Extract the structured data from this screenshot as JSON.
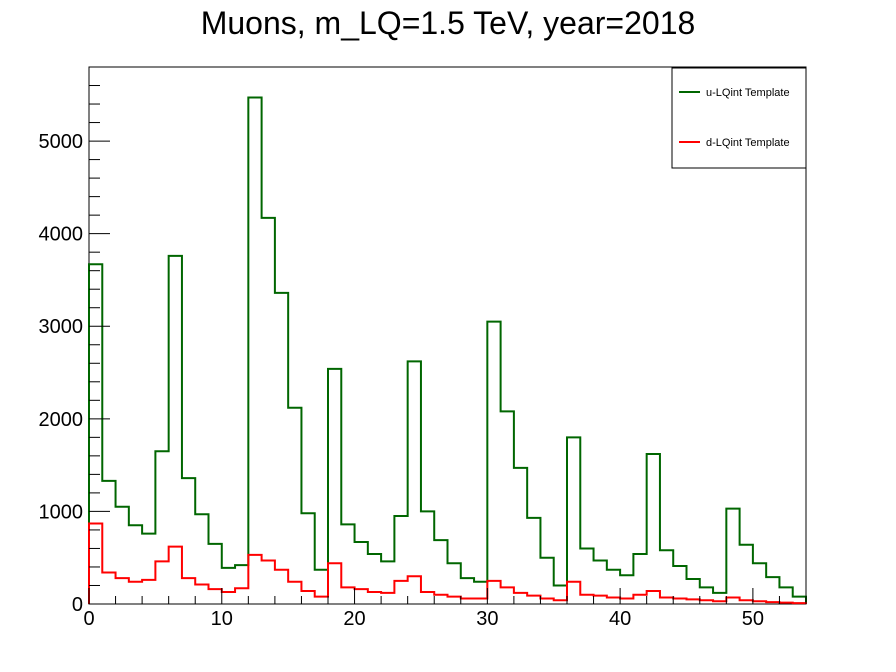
{
  "chart_data": {
    "type": "histogram",
    "title": "Muons, m_LQ=1.5 TeV, year=2018",
    "xlabel": "",
    "ylabel": "",
    "xlim": [
      0,
      54
    ],
    "ylim": [
      0,
      5800
    ],
    "bin_width": 1,
    "x_ticks": [
      0,
      10,
      20,
      30,
      40,
      50
    ],
    "x_tick_labels": [
      "0",
      "10",
      "20",
      "30",
      "40",
      "50"
    ],
    "y_ticks": [
      0,
      1000,
      2000,
      3000,
      4000,
      5000
    ],
    "y_tick_labels": [
      "0",
      "1000",
      "2000",
      "3000",
      "4000",
      "5000"
    ],
    "grid": false,
    "legend": {
      "position": "top-right",
      "entries": [
        "u-LQint Template",
        "d-LQint Template"
      ]
    },
    "series": [
      {
        "name": "u-LQint Template",
        "color": "#006600",
        "values": [
          3670,
          1330,
          1050,
          850,
          760,
          1650,
          3760,
          1360,
          970,
          650,
          390,
          420,
          5470,
          4170,
          3360,
          2120,
          980,
          370,
          2540,
          860,
          670,
          540,
          460,
          950,
          2620,
          1000,
          690,
          440,
          280,
          240,
          3050,
          2080,
          1470,
          930,
          500,
          200,
          1800,
          600,
          470,
          370,
          310,
          540,
          1620,
          580,
          410,
          270,
          180,
          120,
          1030,
          640,
          440,
          290,
          180,
          80
        ]
      },
      {
        "name": "d-LQint Template",
        "color": "#ff0000",
        "values": [
          870,
          340,
          280,
          240,
          260,
          460,
          620,
          280,
          210,
          160,
          130,
          170,
          530,
          470,
          370,
          240,
          140,
          80,
          440,
          180,
          160,
          130,
          120,
          250,
          300,
          130,
          100,
          80,
          60,
          60,
          250,
          180,
          120,
          90,
          60,
          40,
          240,
          100,
          90,
          70,
          60,
          100,
          140,
          70,
          60,
          50,
          40,
          30,
          70,
          40,
          30,
          20,
          15,
          10
        ]
      }
    ]
  }
}
